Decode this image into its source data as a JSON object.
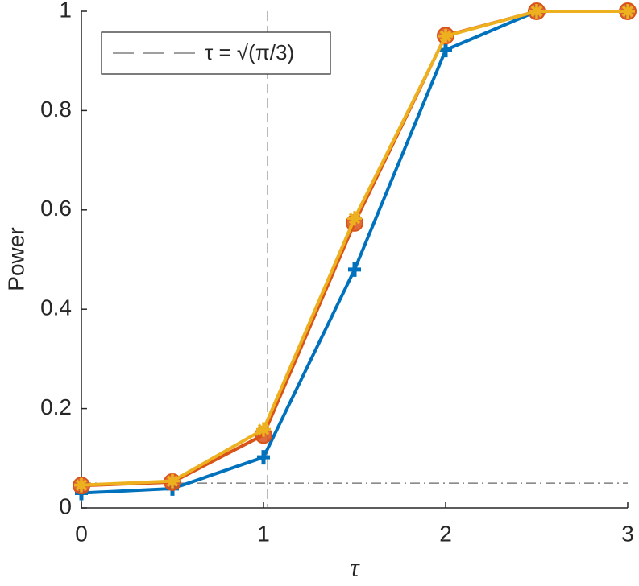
{
  "chart_data": {
    "type": "line",
    "x": [
      0,
      0.5,
      1,
      1.5,
      2,
      2.5,
      3
    ],
    "series": [
      {
        "color": "#0072bd",
        "marker": "plus",
        "values": [
          0.03,
          0.039,
          0.102,
          0.48,
          0.922,
          1.0,
          1.0
        ]
      },
      {
        "color": "#d95319",
        "marker": "circle",
        "values": [
          0.045,
          0.052,
          0.147,
          0.574,
          0.951,
          1.0,
          1.0
        ]
      },
      {
        "color": "#edb120",
        "marker": "star",
        "values": [
          0.046,
          0.054,
          0.158,
          0.583,
          0.95,
          1.0,
          1.0
        ]
      }
    ],
    "reference_lines": [
      {
        "x": 1.023,
        "style": "dashed",
        "label": "τ = √(π/3)"
      },
      {
        "y": 0.05,
        "style": "dashdot"
      }
    ],
    "xlabel": "τ",
    "ylabel": "Power",
    "xlim": [
      0,
      3
    ],
    "xticks": [
      0,
      1,
      2,
      3
    ],
    "ylim": [
      0,
      1
    ],
    "yticks": [
      0,
      0.2,
      0.4,
      0.6,
      0.8,
      1
    ],
    "legend": "top-left"
  }
}
